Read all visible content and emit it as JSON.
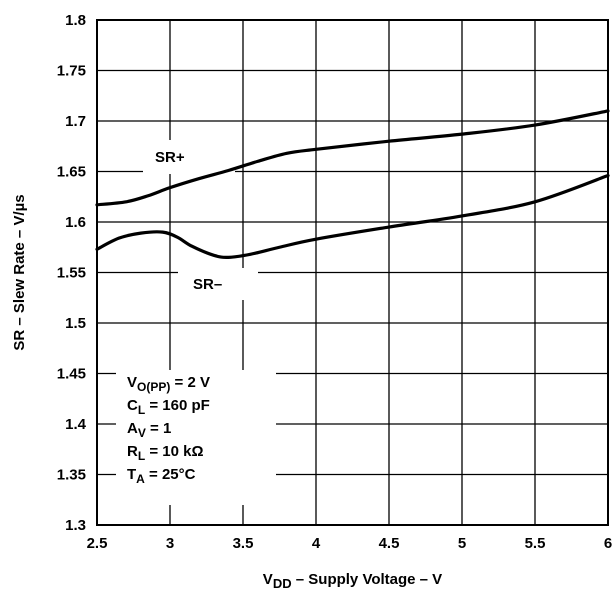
{
  "chart_data": {
    "type": "line",
    "title": "",
    "xlabel": {
      "main": "V",
      "sub": "DD",
      "rest": " – Supply Voltage – V"
    },
    "ylabel": "SR – Slew Rate – V/µs",
    "xlim": [
      2.5,
      6
    ],
    "ylim": [
      1.3,
      1.8
    ],
    "grid": true,
    "x_ticks": [
      "2.5",
      "3",
      "3.5",
      "4",
      "4.5",
      "5",
      "5.5",
      "6"
    ],
    "y_ticks": [
      "1.3",
      "1.35",
      "1.4",
      "1.45",
      "1.5",
      "1.55",
      "1.6",
      "1.65",
      "1.7",
      "1.75",
      "1.8"
    ],
    "series": [
      {
        "name": "SR+",
        "x": [
          2.5,
          2.7,
          2.85,
          3.0,
          3.2,
          3.4,
          3.6,
          3.8,
          4.0,
          4.5,
          5.0,
          5.5,
          6.0
        ],
        "y": [
          1.617,
          1.62,
          1.626,
          1.634,
          1.643,
          1.651,
          1.66,
          1.668,
          1.672,
          1.68,
          1.687,
          1.696,
          1.71
        ]
      },
      {
        "name": "SR–",
        "x": [
          2.5,
          2.65,
          2.8,
          2.95,
          3.05,
          3.15,
          3.3,
          3.4,
          3.55,
          3.75,
          4.0,
          4.5,
          5.0,
          5.5,
          6.0
        ],
        "y": [
          1.573,
          1.584,
          1.589,
          1.59,
          1.585,
          1.576,
          1.567,
          1.565,
          1.568,
          1.575,
          1.583,
          1.595,
          1.606,
          1.62,
          1.646
        ]
      }
    ],
    "conditions": [
      {
        "main": "V",
        "sub": "O(PP)",
        "rest": " = 2 V"
      },
      {
        "main": "C",
        "sub": "L",
        "rest": " = 160 pF"
      },
      {
        "main": "A",
        "sub": "V",
        "rest": " = 1"
      },
      {
        "main": "R",
        "sub": "L",
        "rest": " = 10 kΩ"
      },
      {
        "main": "T",
        "sub": "A",
        "rest": " = 25°C"
      }
    ]
  }
}
